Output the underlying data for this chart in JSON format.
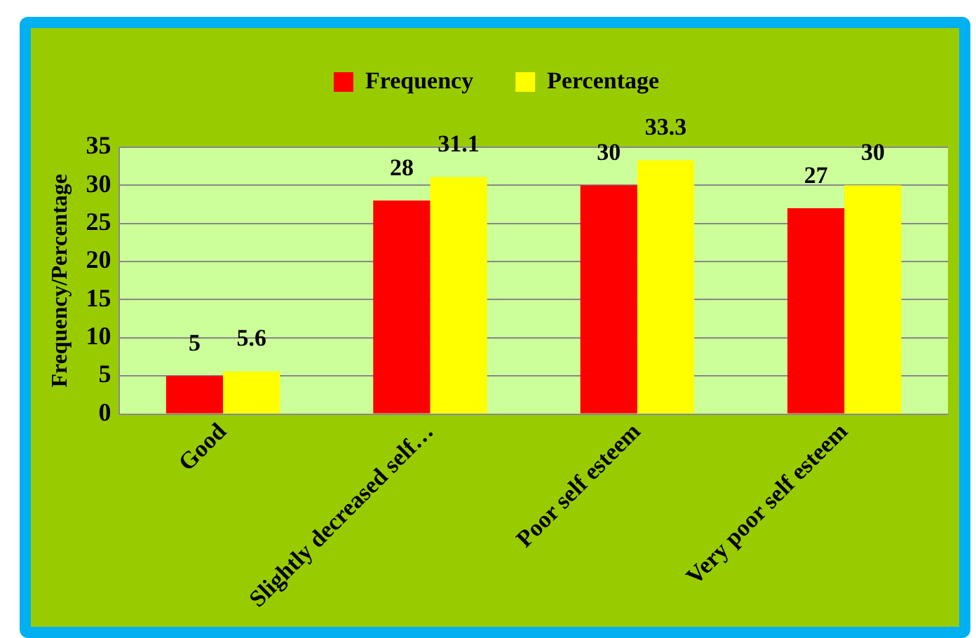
{
  "chart_data": {
    "type": "bar",
    "ylabel": "Frequency/Percentage",
    "categories": [
      "Good",
      "Slightly decreased self…",
      "Poor self esteem",
      "Very poor self esteem"
    ],
    "series": [
      {
        "name": "Frequency",
        "color": "#ff0000",
        "values": [
          5,
          28,
          30,
          27
        ]
      },
      {
        "name": "Percentage",
        "color": "#ffff00",
        "values": [
          5.6,
          31.1,
          33.3,
          30
        ]
      }
    ],
    "ylim": [
      0,
      35
    ],
    "yticks": [
      0,
      5,
      10,
      15,
      20,
      25,
      30,
      35
    ],
    "grid": "y",
    "legend": "top",
    "data_labels": true
  }
}
